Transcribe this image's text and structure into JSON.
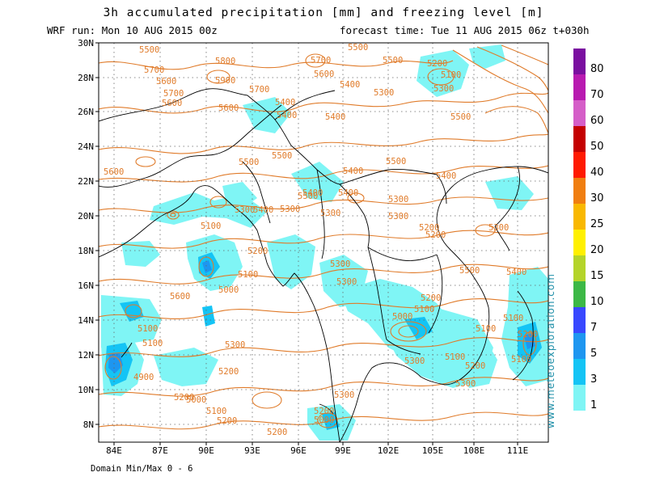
{
  "header": {
    "title": "3h accumulated precipitation [mm] and freezing level [m]",
    "run": "WRF run: Mon 10 AUG 2015 00z",
    "forecast": "forecast time: Tue 11 AUG 2015 06z  t+030h"
  },
  "footer": {
    "domain_minmax": "Domain Min/Max 0 - 6"
  },
  "watermark": "www.meteoexploration.com",
  "map": {
    "lat_labels": [
      "30N",
      "28N",
      "26N",
      "24N",
      "22N",
      "20N",
      "18N",
      "16N",
      "14N",
      "12N",
      "10N",
      "8N"
    ],
    "lon_labels": [
      "84E",
      "87E",
      "90E",
      "93E",
      "96E",
      "99E",
      "102E",
      "105E",
      "108E",
      "111E"
    ],
    "freezing_level_labels": [
      "5500",
      "5700",
      "5600",
      "5700",
      "5600",
      "5800",
      "5900",
      "5700",
      "5600",
      "5400",
      "5200",
      "5100",
      "5300",
      "5500",
      "5400",
      "5300",
      "5700",
      "5600",
      "5500",
      "5500",
      "5400",
      "5400",
      "5500",
      "5400",
      "5500",
      "5400",
      "5600",
      "5300",
      "5400",
      "5300",
      "5200",
      "5300",
      "5400",
      "5300",
      "5200",
      "5500",
      "5400",
      "5300",
      "5500",
      "5300",
      "5100",
      "5200",
      "5100",
      "5000",
      "5300",
      "5200",
      "5300",
      "5600",
      "5100",
      "5300",
      "5300",
      "5200",
      "5100",
      "5000",
      "4900",
      "5100",
      "5200",
      "5000",
      "5100",
      "5200",
      "5200",
      "5200",
      "5000",
      "5300",
      "5100",
      "5200",
      "5100",
      "5100",
      "5200",
      "5100",
      "5300",
      "5500",
      "5400"
    ]
  },
  "colorbar": {
    "labels": [
      "80",
      "70",
      "60",
      "50",
      "40",
      "30",
      "25",
      "20",
      "15",
      "10",
      "7",
      "5",
      "3",
      "1"
    ],
    "colors": [
      "#7a0fa0",
      "#b81ab0",
      "#d55ec8",
      "#c40000",
      "#ff1a00",
      "#f07e10",
      "#f9b800",
      "#fff000",
      "#b4d42a",
      "#3cb846",
      "#3848ff",
      "#1e96f0",
      "#14c4f5",
      "#7ff5f5"
    ]
  }
}
